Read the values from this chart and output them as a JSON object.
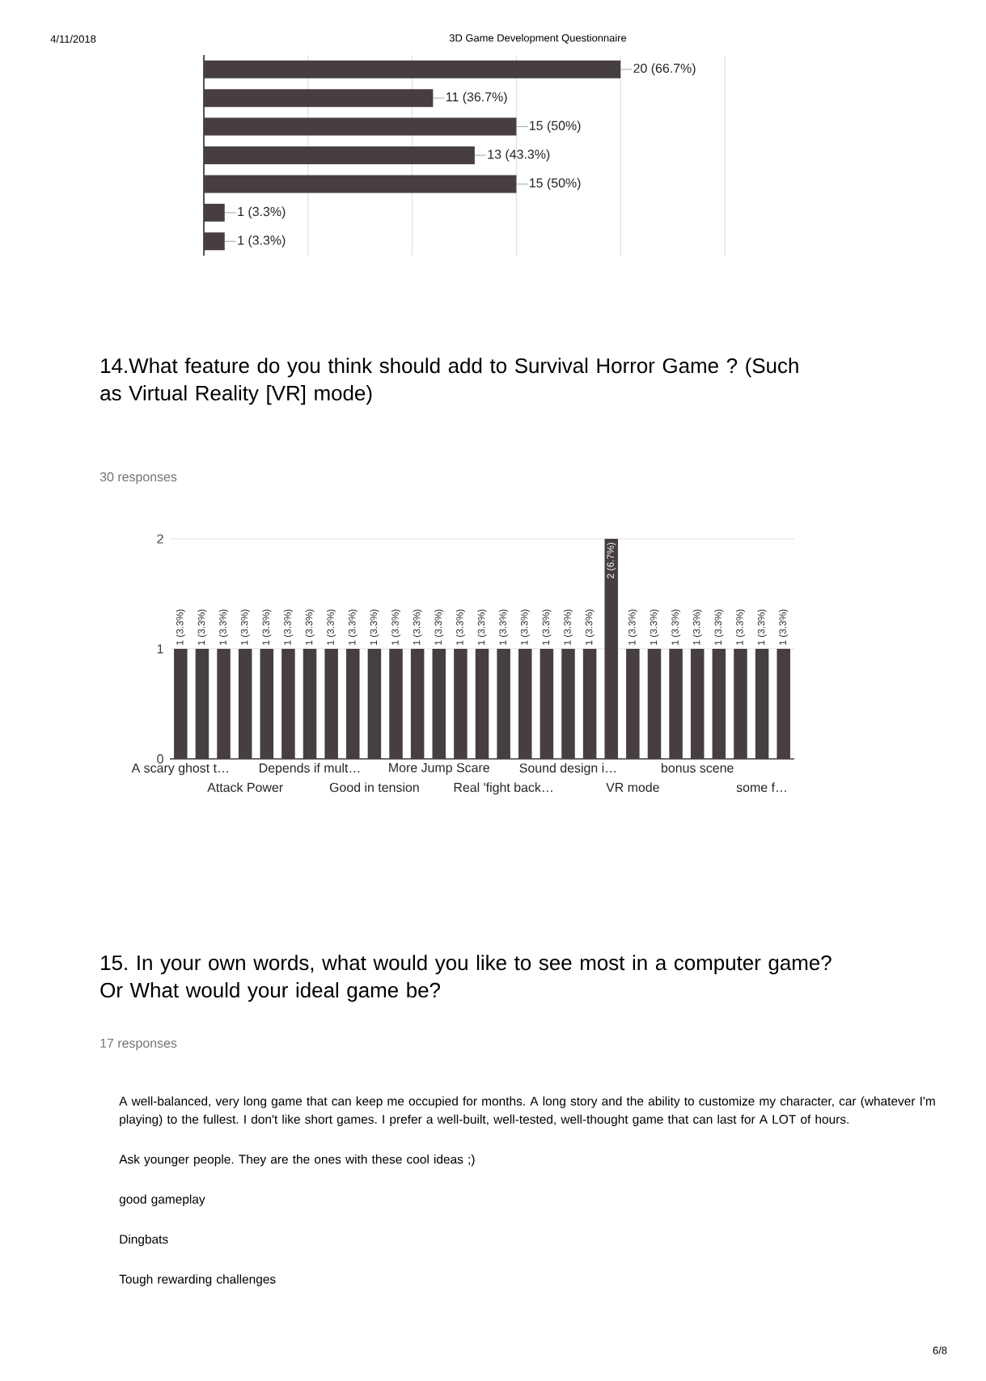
{
  "chart_data": [
    {
      "type": "bar",
      "orientation": "horizontal",
      "categories": [
        null,
        null,
        null,
        null,
        null,
        null,
        null
      ],
      "values": [
        20,
        11,
        15,
        13,
        15,
        1,
        1
      ],
      "value_labels": [
        "20 (66.7%)",
        "11 (36.7%)",
        "15 (50%)",
        "13 (43.3%)",
        "15 (50%)",
        "1 (3.3%)",
        "1 (3.3%)"
      ],
      "color": "#463e40",
      "xlim": [
        0,
        25
      ],
      "xticks": [
        {
          "value": 0,
          "label": null
        },
        {
          "value": 5,
          "label": null
        },
        {
          "value": 10,
          "label": null
        },
        {
          "value": 15,
          "label": null
        },
        {
          "value": 20,
          "label": null
        },
        {
          "value": 25,
          "label": null
        }
      ],
      "grid": "x",
      "annotations": [
        "4/11/2018",
        "3D Game Development Questionnaire",
        "6/8"
      ]
    },
    {
      "type": "bar",
      "title": "14.What feature do you think should add to Survival Horror Game ? (Such as Virtual Reality [VR] mode)",
      "subtitle": "30 responses",
      "categories": [
        "A scary ghost t…",
        null,
        null,
        "Attack Power",
        null,
        null,
        "Depends if mult…",
        null,
        null,
        "Good in tension",
        null,
        null,
        "More Jump Scare",
        null,
        null,
        "Real 'fight back…",
        null,
        null,
        "Sound design i…",
        null,
        null,
        "VR mode",
        null,
        null,
        "bonus scene",
        null,
        null,
        "some f…",
        null
      ],
      "values": [
        1,
        1,
        1,
        1,
        1,
        1,
        1,
        1,
        1,
        1,
        1,
        1,
        1,
        1,
        1,
        1,
        1,
        1,
        1,
        1,
        2,
        1,
        1,
        1,
        1,
        1,
        1,
        1,
        1
      ],
      "value_labels": [
        "1 (3.3%)",
        "1 (3.3%)",
        "1 (3.3%)",
        "1 (3.3%)",
        "1 (3.3%)",
        "1 (3.3%)",
        "1 (3.3%)",
        "1 (3.3%)",
        "1 (3.3%)",
        "1 (3.3%)",
        "1 (3.3%)",
        "1 (3.3%)",
        "1 (3.3%)",
        "1 (3.3%)",
        "1 (3.3%)",
        "1 (3.3%)",
        "1 (3.3%)",
        "1 (3.3%)",
        "1 (3.3%)",
        "1 (3.3%)",
        "2 (6.7%)",
        "1 (3.3%)",
        "1 (3.3%)",
        "1 (3.3%)",
        "1 (3.3%)",
        "1 (3.3%)",
        "1 (3.3%)",
        "1 (3.3%)",
        "1 (3.3%)"
      ],
      "color": "#463e40",
      "ylim": [
        0,
        2
      ],
      "yticks": [
        0,
        1,
        2
      ],
      "grid": "y",
      "annotations": [
        "15. In your own words, what would you like to see most in a computer game? Or What would your ideal game be?",
        "17 responses",
        "A well-balanced, very long game that can keep me occupied for months. A long story and the ability to customize my character, car (whatever I'm playing) to the fullest. I don't like short games. I prefer a well-built, well-tested, well-thought game that can last for A LOT of hours.",
        "Ask younger people. They are the ones with these cool ideas ;)",
        "good gameplay",
        "Dingbats",
        "Tough rewarding challenges"
      ]
    }
  ]
}
